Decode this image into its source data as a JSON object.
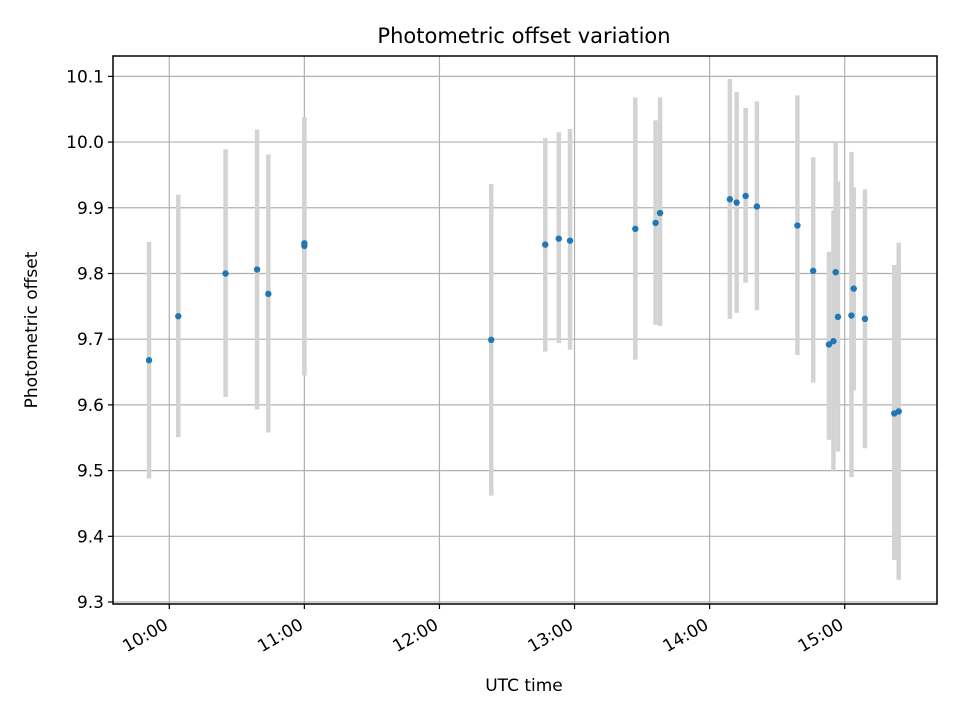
{
  "chart_data": {
    "type": "scatter",
    "title": "Photometric offset variation",
    "xlabel": "UTC time",
    "ylabel": "Photometric offset",
    "xlim": [
      "09:35",
      "15:41"
    ],
    "ylim": [
      9.297,
      10.131
    ],
    "grid": true,
    "x_ticks": [
      "10:00",
      "11:00",
      "12:00",
      "13:00",
      "14:00",
      "15:00"
    ],
    "y_ticks": [
      "9.3",
      "9.4",
      "9.5",
      "9.6",
      "9.7",
      "9.8",
      "9.9",
      "10.0",
      "10.1"
    ],
    "points_time": [
      "09:51",
      "10:04",
      "10:25",
      "10:39",
      "10:44",
      "11:00",
      "11:00",
      "12:23",
      "12:47",
      "12:53",
      "12:58",
      "13:27",
      "13:36",
      "13:38",
      "14:09",
      "14:12",
      "14:16",
      "14:21",
      "14:39",
      "14:46",
      "14:53",
      "14:55",
      "14:56",
      "14:57",
      "15:03",
      "15:04",
      "15:09",
      "15:22",
      "15:24"
    ],
    "points_value": [
      9.668,
      9.735,
      9.8,
      9.806,
      9.769,
      9.842,
      9.846,
      9.699,
      9.844,
      9.853,
      9.85,
      9.868,
      9.877,
      9.892,
      9.913,
      9.908,
      9.918,
      9.902,
      9.873,
      9.804,
      9.692,
      9.697,
      9.802,
      9.734,
      9.736,
      9.777,
      9.731,
      9.587,
      9.59
    ],
    "points_lower": [
      9.488,
      9.551,
      9.612,
      9.593,
      9.558,
      9.645,
      9.645,
      9.462,
      9.681,
      9.694,
      9.684,
      9.669,
      9.722,
      9.72,
      9.731,
      9.74,
      9.786,
      9.744,
      9.676,
      9.634,
      9.547,
      9.5,
      9.604,
      9.529,
      9.49,
      9.622,
      9.534,
      9.364,
      9.334
    ],
    "points_upper": [
      9.848,
      9.92,
      9.989,
      10.019,
      9.981,
      10.038,
      10.038,
      9.936,
      10.006,
      10.015,
      10.02,
      10.068,
      10.033,
      10.068,
      10.096,
      10.076,
      10.052,
      10.062,
      10.071,
      9.977,
      9.833,
      9.896,
      10.0,
      9.94,
      9.985,
      9.931,
      9.928,
      9.813,
      9.847
    ],
    "colors": {
      "points": "#1f77b4",
      "errorbars": "#d3d3d3",
      "grid": "#b0b0b0",
      "axes": "#000000"
    }
  }
}
